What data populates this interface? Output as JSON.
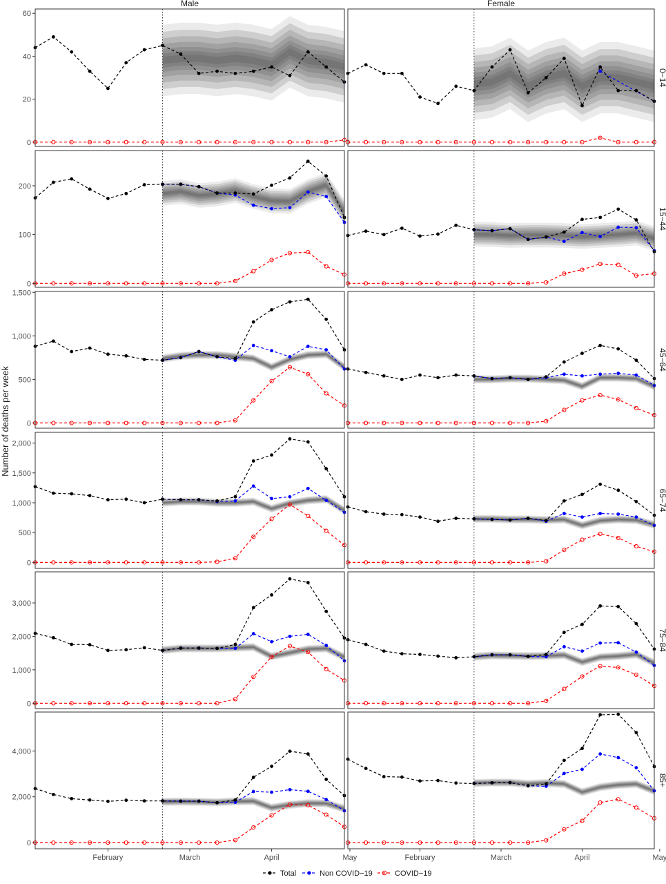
{
  "ylabel": "Number of deaths per week",
  "columns": [
    "Male",
    "Female"
  ],
  "x_axis": {
    "n_weeks": 18,
    "ticks": [
      {
        "label": "February",
        "week": 4
      },
      {
        "label": "March",
        "week": 8.5
      },
      {
        "label": "April",
        "week": 13
      },
      {
        "label": "May",
        "week": 17.3
      }
    ]
  },
  "vline_week": 7,
  "legend": [
    {
      "label": "Total",
      "color": "#000000",
      "marker": "filled"
    },
    {
      "label": "Non COVID−19",
      "color": "#0000ff",
      "marker": "filled"
    },
    {
      "label": "COVID−19",
      "color": "#ff0000",
      "marker": "open"
    }
  ],
  "chart_data": {
    "type": "line",
    "x_unit": "week index (0 = first week shown, ~early January 2020; 17 = first week of May)",
    "band": "grey shaded ribbon = expected deaths, weeks 7 to 17",
    "rows": [
      {
        "label": "0−14",
        "ylim": [
          -2,
          62
        ],
        "yticks": [
          0,
          20,
          40,
          60
        ],
        "ytick_labels": [
          "0",
          "20",
          "40",
          "60"
        ],
        "male": {
          "total": [
            44,
            49,
            42,
            33,
            25,
            37,
            43,
            45,
            41,
            32,
            33,
            32,
            33,
            35,
            31,
            42,
            35,
            28
          ],
          "non_covid": [
            null,
            null,
            null,
            null,
            null,
            null,
            null,
            null,
            null,
            null,
            null,
            null,
            null,
            null,
            null,
            null,
            null,
            28
          ],
          "covid": [
            0,
            0,
            0,
            0,
            0,
            0,
            0,
            0,
            0,
            0,
            0,
            0,
            0,
            0,
            0,
            0,
            0,
            1
          ],
          "expected": [
            null,
            null,
            null,
            null,
            null,
            null,
            null,
            38,
            39,
            39,
            38,
            39,
            38,
            36,
            42,
            38,
            37,
            35
          ]
        },
        "female": {
          "total": [
            32,
            36,
            32,
            32,
            21,
            18,
            26,
            24,
            35,
            43,
            23,
            30,
            39,
            17,
            35,
            24,
            24,
            19
          ],
          "non_covid": [
            null,
            null,
            null,
            null,
            null,
            null,
            null,
            null,
            null,
            null,
            null,
            null,
            null,
            null,
            33,
            null,
            null,
            19
          ],
          "covid": [
            0,
            0,
            0,
            0,
            0,
            0,
            0,
            0,
            0,
            0,
            0,
            0,
            0,
            0,
            2,
            0,
            0,
            0
          ],
          "expected": [
            null,
            null,
            null,
            null,
            null,
            null,
            null,
            27,
            28,
            32,
            26,
            30,
            32,
            26,
            30,
            30,
            28,
            26
          ]
        }
      },
      {
        "label": "15−44",
        "ylim": [
          -8,
          272
        ],
        "yticks": [
          0,
          100,
          200
        ],
        "ytick_labels": [
          "0",
          "100",
          "200"
        ],
        "male": {
          "total": [
            175,
            207,
            214,
            193,
            174,
            184,
            202,
            203,
            203,
            198,
            185,
            185,
            183,
            201,
            216,
            250,
            220,
            135
          ],
          "non_covid": [
            null,
            null,
            null,
            null,
            null,
            null,
            null,
            203,
            203,
            198,
            185,
            181,
            160,
            153,
            155,
            187,
            178,
            125
          ],
          "covid": [
            0,
            0,
            0,
            0,
            0,
            0,
            0,
            0,
            0,
            0,
            0,
            5,
            25,
            48,
            62,
            64,
            35,
            18
          ],
          "expected": [
            null,
            null,
            null,
            null,
            null,
            null,
            null,
            184,
            188,
            180,
            183,
            190,
            178,
            169,
            168,
            188,
            201,
            146
          ]
        },
        "female": {
          "total": [
            98,
            107,
            100,
            113,
            97,
            101,
            119,
            110,
            108,
            112,
            90,
            95,
            105,
            131,
            135,
            152,
            130,
            65
          ],
          "non_covid": [
            null,
            null,
            null,
            null,
            null,
            null,
            null,
            110,
            108,
            112,
            90,
            95,
            86,
            104,
            96,
            115,
            114,
            67
          ],
          "covid": [
            0,
            0,
            0,
            0,
            0,
            0,
            0,
            0,
            0,
            0,
            0,
            2,
            20,
            28,
            40,
            38,
            16,
            20
          ],
          "expected": [
            null,
            null,
            null,
            null,
            null,
            null,
            null,
            101,
            100,
            98,
            99,
            99,
            98,
            96,
            98,
            100,
            103,
            92
          ]
        }
      },
      {
        "label": "45−64",
        "ylim": [
          -60,
          1510
        ],
        "yticks": [
          0,
          500,
          1000,
          1500
        ],
        "ytick_labels": [
          "0",
          "500",
          "1,000",
          "1,500"
        ],
        "male": {
          "total": [
            880,
            940,
            820,
            860,
            790,
            770,
            730,
            720,
            750,
            820,
            760,
            740,
            1160,
            1300,
            1390,
            1420,
            1190,
            840
          ],
          "non_covid": [
            null,
            null,
            null,
            null,
            null,
            null,
            null,
            720,
            750,
            820,
            760,
            720,
            890,
            830,
            760,
            880,
            840,
            620
          ],
          "covid": [
            0,
            0,
            0,
            0,
            0,
            0,
            0,
            0,
            0,
            0,
            0,
            30,
            260,
            480,
            640,
            560,
            340,
            200
          ],
          "expected": [
            null,
            null,
            null,
            null,
            null,
            null,
            null,
            740,
            770,
            780,
            780,
            760,
            740,
            640,
            730,
            780,
            790,
            640
          ]
        },
        "female": {
          "total": [
            620,
            580,
            540,
            500,
            550,
            520,
            550,
            540,
            510,
            520,
            500,
            530,
            700,
            800,
            890,
            850,
            720,
            510
          ],
          "non_covid": [
            null,
            null,
            null,
            null,
            null,
            null,
            null,
            540,
            510,
            520,
            500,
            520,
            560,
            540,
            560,
            570,
            550,
            430
          ],
          "covid": [
            0,
            0,
            0,
            0,
            0,
            0,
            0,
            0,
            0,
            0,
            0,
            20,
            150,
            260,
            320,
            270,
            170,
            90
          ],
          "expected": [
            null,
            null,
            null,
            null,
            null,
            null,
            null,
            500,
            500,
            510,
            510,
            500,
            490,
            420,
            520,
            520,
            510,
            420
          ]
        }
      },
      {
        "label": "65−74",
        "ylim": [
          -100,
          2180
        ],
        "yticks": [
          0,
          500,
          1000,
          1500,
          2000
        ],
        "ytick_labels": [
          "0",
          "500",
          "1,000",
          "1,500",
          "2,000"
        ],
        "male": {
          "total": [
            1270,
            1160,
            1150,
            1120,
            1050,
            1060,
            1000,
            1060,
            1050,
            1050,
            1030,
            1100,
            1700,
            1800,
            2070,
            2020,
            1570,
            1100
          ],
          "non_covid": [
            null,
            null,
            null,
            null,
            null,
            null,
            null,
            1060,
            1050,
            1050,
            1020,
            1030,
            1280,
            1070,
            1100,
            1240,
            1040,
            840
          ],
          "covid": [
            0,
            0,
            0,
            0,
            0,
            0,
            0,
            0,
            0,
            0,
            10,
            70,
            430,
            730,
            970,
            780,
            530,
            290
          ],
          "expected": [
            null,
            null,
            null,
            null,
            null,
            null,
            null,
            1000,
            1020,
            1020,
            1000,
            1000,
            1020,
            900,
            990,
            1040,
            1060,
            870
          ]
        },
        "female": {
          "total": [
            930,
            850,
            810,
            800,
            760,
            690,
            740,
            730,
            720,
            710,
            740,
            700,
            1030,
            1140,
            1310,
            1210,
            1020,
            790
          ],
          "non_covid": [
            null,
            null,
            null,
            null,
            null,
            null,
            null,
            730,
            720,
            710,
            740,
            690,
            820,
            760,
            820,
            810,
            760,
            620
          ],
          "covid": [
            0,
            0,
            0,
            0,
            0,
            0,
            0,
            0,
            0,
            0,
            0,
            20,
            210,
            380,
            480,
            410,
            270,
            180
          ],
          "expected": [
            null,
            null,
            null,
            null,
            null,
            null,
            null,
            730,
            730,
            720,
            720,
            710,
            720,
            620,
            700,
            720,
            710,
            630
          ]
        }
      },
      {
        "label": "75−84",
        "ylim": [
          -160,
          3930
        ],
        "yticks": [
          0,
          1000,
          2000,
          3000
        ],
        "ytick_labels": [
          "0",
          "1,000",
          "2,000",
          "3,000"
        ],
        "male": {
          "total": [
            2090,
            1960,
            1760,
            1750,
            1580,
            1600,
            1660,
            1580,
            1650,
            1650,
            1640,
            1760,
            2860,
            3240,
            3720,
            3610,
            2750,
            1950
          ],
          "non_covid": [
            null,
            null,
            null,
            null,
            null,
            null,
            null,
            1580,
            1650,
            1650,
            1640,
            1640,
            2080,
            1840,
            2000,
            2060,
            1730,
            1270
          ],
          "covid": [
            0,
            0,
            0,
            0,
            0,
            0,
            0,
            0,
            0,
            0,
            0,
            120,
            790,
            1390,
            1710,
            1530,
            1020,
            680
          ],
          "expected": [
            null,
            null,
            null,
            null,
            null,
            null,
            null,
            1590,
            1640,
            1640,
            1640,
            1660,
            1680,
            1400,
            1510,
            1620,
            1640,
            1380
          ]
        },
        "female": {
          "total": [
            1900,
            1760,
            1560,
            1480,
            1460,
            1410,
            1360,
            1390,
            1450,
            1450,
            1400,
            1460,
            2120,
            2360,
            2910,
            2890,
            2380,
            1620
          ],
          "non_covid": [
            null,
            null,
            null,
            null,
            null,
            null,
            null,
            1390,
            1450,
            1450,
            1400,
            1390,
            1690,
            1560,
            1800,
            1810,
            1530,
            1130
          ],
          "covid": [
            0,
            0,
            0,
            0,
            0,
            0,
            0,
            0,
            0,
            0,
            0,
            70,
            430,
            800,
            1110,
            1070,
            850,
            520
          ],
          "expected": [
            null,
            null,
            null,
            null,
            null,
            null,
            null,
            1390,
            1430,
            1420,
            1410,
            1420,
            1440,
            1230,
            1380,
            1410,
            1460,
            1200
          ]
        }
      },
      {
        "label": "85+",
        "ylim": [
          -270,
          5700
        ],
        "yticks": [
          0,
          2000,
          4000
        ],
        "ytick_labels": [
          "0",
          "2,000",
          "4,000"
        ],
        "male": {
          "total": [
            2360,
            2100,
            1920,
            1860,
            1800,
            1850,
            1820,
            1820,
            1810,
            1810,
            1740,
            1860,
            2850,
            3330,
            3990,
            3870,
            2760,
            2050
          ],
          "non_covid": [
            null,
            null,
            null,
            null,
            null,
            null,
            null,
            1820,
            1810,
            1810,
            1740,
            1760,
            2230,
            2200,
            2310,
            2240,
            1880,
            1390
          ],
          "covid": [
            0,
            0,
            0,
            0,
            0,
            0,
            0,
            0,
            0,
            0,
            0,
            110,
            660,
            1190,
            1660,
            1630,
            1220,
            690
          ],
          "expected": [
            null,
            null,
            null,
            null,
            null,
            null,
            null,
            1780,
            1790,
            1780,
            1760,
            1800,
            1810,
            1520,
            1650,
            1720,
            1710,
            1480
          ]
        },
        "female": {
          "total": [
            3640,
            3240,
            2880,
            2860,
            2690,
            2710,
            2600,
            2580,
            2610,
            2620,
            2480,
            2560,
            3590,
            4110,
            5580,
            5600,
            4800,
            3320
          ],
          "non_covid": [
            null,
            null,
            null,
            null,
            null,
            null,
            null,
            2580,
            2610,
            2620,
            2480,
            2460,
            3020,
            3200,
            3870,
            3710,
            3270,
            2260
          ],
          "covid": [
            0,
            0,
            0,
            0,
            0,
            0,
            0,
            0,
            0,
            0,
            0,
            100,
            580,
            950,
            1750,
            1890,
            1530,
            1060
          ],
          "expected": [
            null,
            null,
            null,
            null,
            null,
            null,
            null,
            2600,
            2620,
            2620,
            2560,
            2600,
            2560,
            2200,
            2420,
            2520,
            2560,
            2250
          ]
        }
      }
    ]
  }
}
